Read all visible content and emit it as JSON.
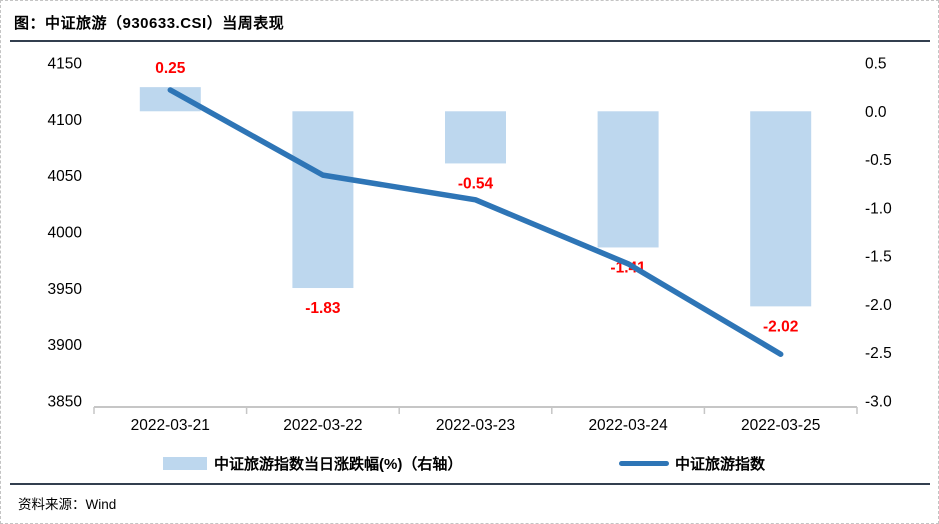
{
  "header": {
    "title": "图：中证旅游（930633.CSI）当周表现"
  },
  "footer": {
    "source": "资料来源：Wind"
  },
  "colors": {
    "bar": "#BDD7EE",
    "line": "#2E75B6",
    "data_label": "#FF0000",
    "divider": "#333F4F",
    "axis_line": "#C6C6C6",
    "text": "#000000"
  },
  "chart_data": {
    "type": "combo",
    "title": "中证旅游（930633.CSI）当周表现",
    "categories": [
      "2022-03-21",
      "2022-03-22",
      "2022-03-23",
      "2022-03-24",
      "2022-03-25"
    ],
    "series": [
      {
        "name": "中证旅游指数当日涨跌幅(%)（右轴）",
        "type": "bar",
        "axis": "right",
        "values": [
          0.25,
          -1.83,
          -0.54,
          -1.41,
          -2.02
        ],
        "data_labels": [
          "0.25",
          "-1.83",
          "-0.54",
          "-1.41",
          "-2.02"
        ],
        "data_label_color": "#FF0000"
      },
      {
        "name": "中证旅游指数",
        "type": "line",
        "axis": "left",
        "values": [
          4126.0,
          4050.5,
          4028.6,
          3971.8,
          3891.5
        ]
      }
    ],
    "left_axis": {
      "min": 3850,
      "max": 4150,
      "step": 50,
      "ticks": [
        "4150",
        "4100",
        "4050",
        "4000",
        "3950",
        "3900",
        "3850"
      ]
    },
    "right_axis": {
      "min": -3.0,
      "max": 0.5,
      "step": 0.5,
      "ticks": [
        "0.5",
        "0.0",
        "-0.5",
        "-1.0",
        "-1.5",
        "-2.0",
        "-2.5",
        "-3.0"
      ]
    },
    "grid": false,
    "legend_position": "bottom"
  }
}
